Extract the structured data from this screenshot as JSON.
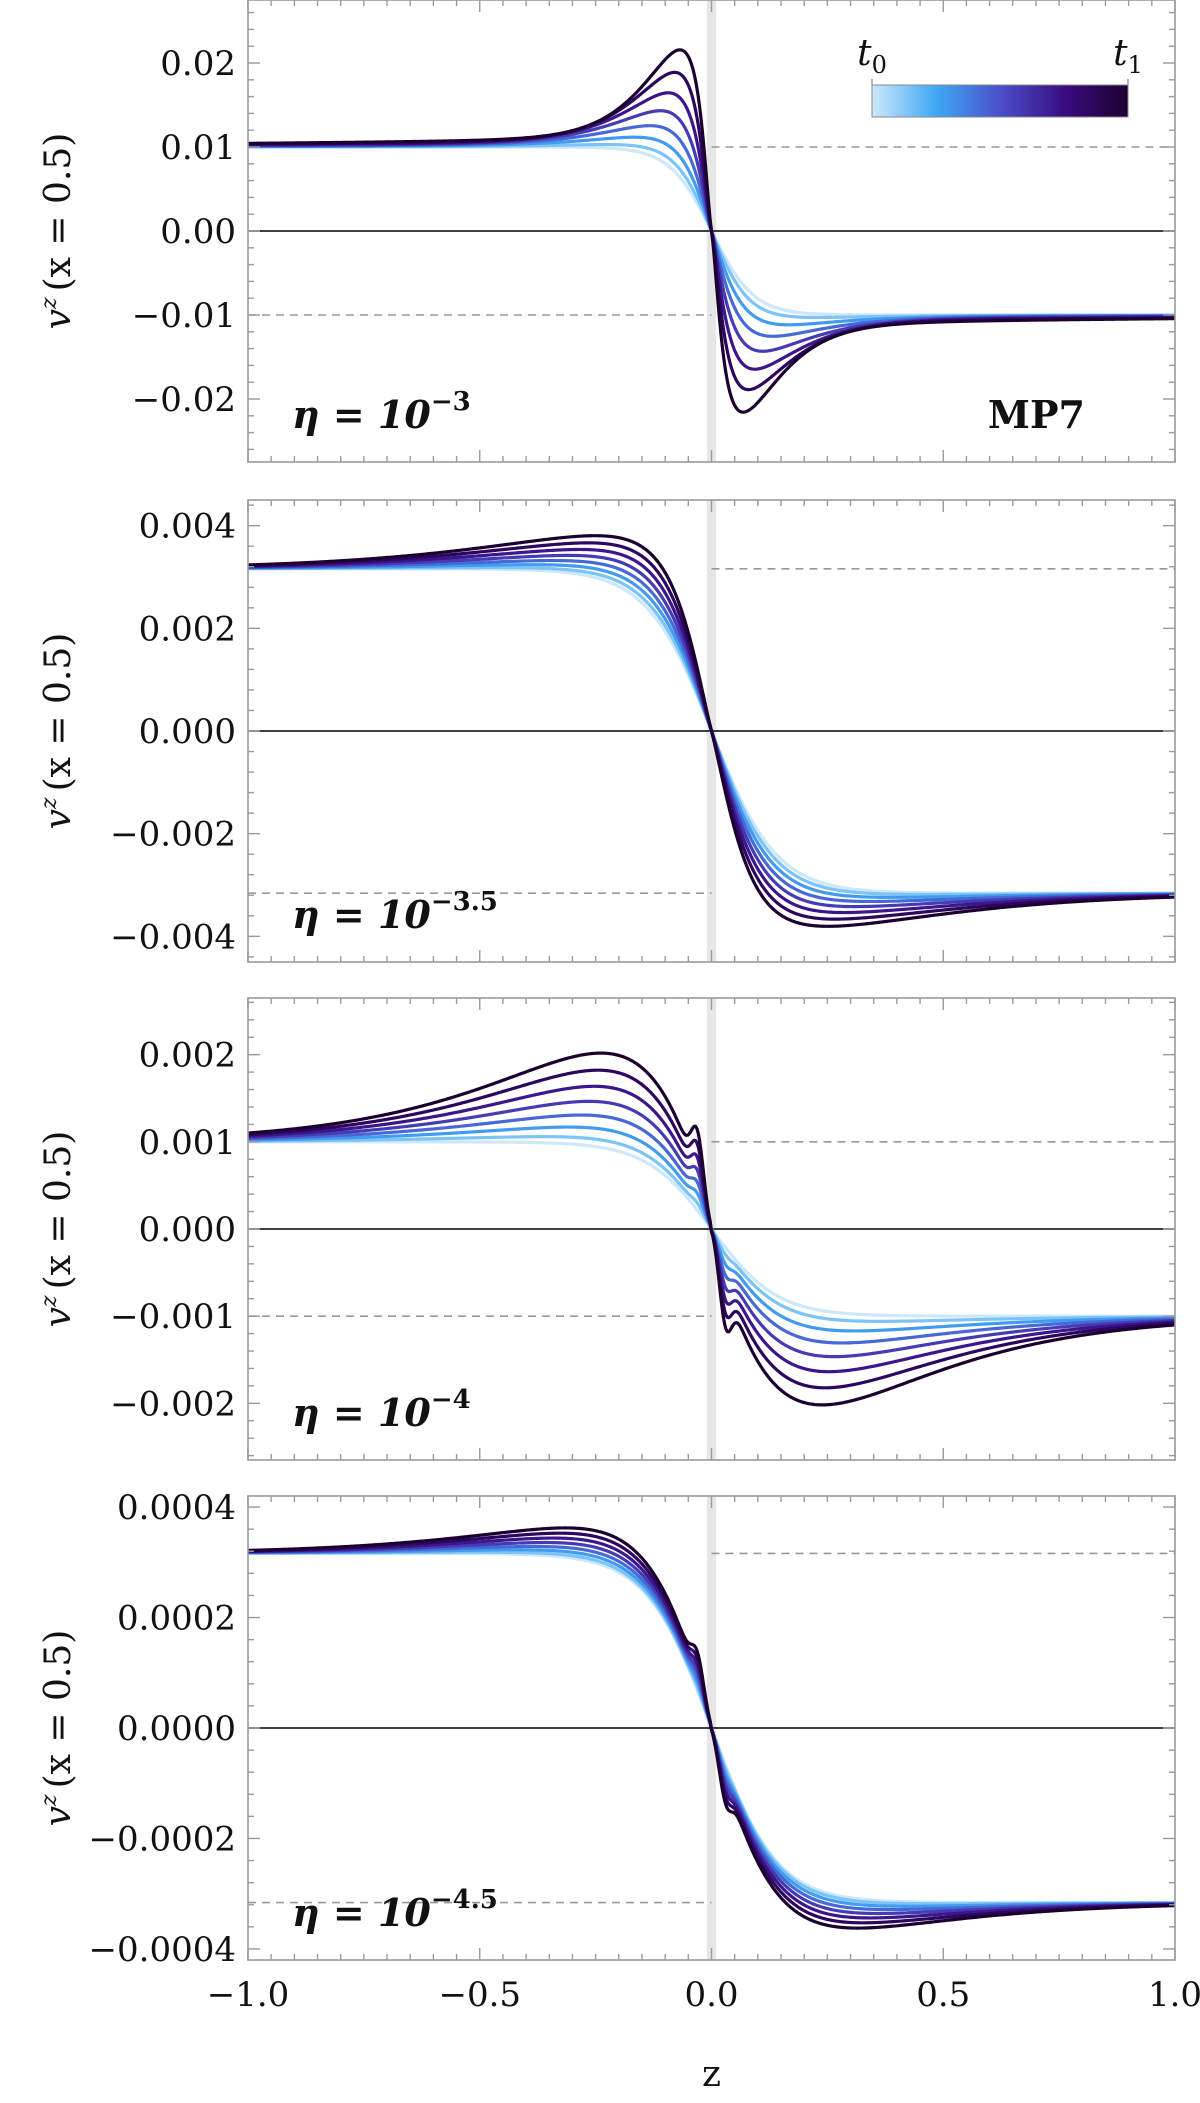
{
  "chart_data": [
    {
      "type": "line",
      "xlabel": "z",
      "ylabel": "v^z (x = 0.5)",
      "ylabel_main": "v",
      "ylabel_sup": "z",
      "ylabel_rest": "(x = 0.5)",
      "xlim": [
        -1.0,
        1.0
      ],
      "ylim": [
        -0.0275,
        0.0275
      ],
      "yticks": [
        -0.02,
        -0.01,
        0.0,
        0.01,
        0.02
      ],
      "ytick_labels": [
        "−0.02",
        "−0.01",
        "0.00",
        "0.01",
        "0.02"
      ],
      "A": 0.01,
      "kind": "smooth",
      "amp": 0.011,
      "spike": 0.0,
      "annotation_main": "η = 10",
      "annotation_exp": "−3",
      "annotation_pos": "bottom-left",
      "model_label": "MP7",
      "colorbar_labels": [
        "t",
        "t"
      ],
      "colorbar_subs": [
        "0",
        "1"
      ],
      "dashed_lines": [
        0.01,
        -0.01
      ]
    },
    {
      "type": "line",
      "xlabel": "z",
      "ylabel": "v^z (x = 0.5)",
      "ylabel_main": "v",
      "ylabel_sup": "z",
      "ylabel_rest": "(x = 0.5)",
      "xlim": [
        -1.0,
        1.0
      ],
      "ylim": [
        -0.0045,
        0.0045
      ],
      "yticks": [
        -0.004,
        -0.002,
        0.0,
        0.002,
        0.004
      ],
      "ytick_labels": [
        "−0.004",
        "−0.002",
        "0.000",
        "0.002",
        "0.004"
      ],
      "A": 0.00316,
      "kind": "mid",
      "amp": 0.00068,
      "spike": 0.0,
      "annotation_main": "η = 10",
      "annotation_exp": "−3.5",
      "annotation_pos": "bottom-left",
      "dashed_lines": [
        0.00316,
        -0.00316
      ]
    },
    {
      "type": "line",
      "xlabel": "z",
      "ylabel": "v^z (x = 0.5)",
      "ylabel_main": "v",
      "ylabel_sup": "z",
      "ylabel_rest": "(x = 0.5)",
      "xlim": [
        -1.0,
        1.0
      ],
      "ylim": [
        -0.00265,
        0.00265
      ],
      "yticks": [
        -0.002,
        -0.001,
        0.0,
        0.001,
        0.002
      ],
      "ytick_labels": [
        "−0.002",
        "−0.001",
        "0.000",
        "0.001",
        "0.002"
      ],
      "A": 0.001,
      "kind": "spiky",
      "amp": 0.0011,
      "spike": 0.00055,
      "annotation_main": "η = 10",
      "annotation_exp": "−4",
      "annotation_pos": "bottom-left",
      "dashed_lines": [
        0.001,
        -0.001
      ]
    },
    {
      "type": "line",
      "xlabel": "z",
      "ylabel": "v^z (x = 0.5)",
      "ylabel_main": "v",
      "ylabel_sup": "z",
      "ylabel_rest": "(x = 0.5)",
      "xlim": [
        -1.0,
        1.0
      ],
      "ylim": [
        -0.00042,
        0.00042
      ],
      "yticks": [
        -0.0004,
        -0.0002,
        0.0,
        0.0002,
        0.0004
      ],
      "ytick_labels": [
        "−0.0004",
        "−0.0002",
        "0.0000",
        "0.0002",
        "0.0004"
      ],
      "xticks": [
        -1.0,
        -0.5,
        0.0,
        0.5,
        1.0
      ],
      "xtick_labels": [
        "−1.0",
        "−0.5",
        "0.0",
        "0.5",
        "1.0"
      ],
      "A": 0.000316,
      "kind": "spiky",
      "amp": 6e-05,
      "spike": 5e-05,
      "annotation_main": "η = 10",
      "annotation_exp": "−4.5",
      "annotation_pos": "bottom-left",
      "dashed_lines": [
        0.000316,
        -0.000316
      ]
    }
  ],
  "series_count": 8,
  "colors": {
    "gradient": [
      "#cde8fb",
      "#3fa9f5",
      "#4a4fc8",
      "#3a0d82",
      "#1c0030"
    ],
    "dashed": "#999999",
    "zero_line": "#000000",
    "frame": "#9a9a9a",
    "center_band": "#e6e6e6"
  }
}
